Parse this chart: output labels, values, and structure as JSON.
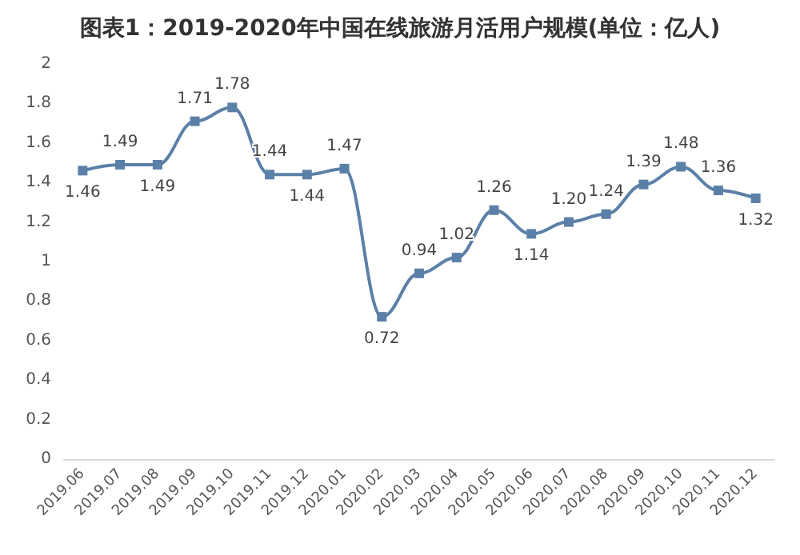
{
  "chart_data": {
    "type": "line",
    "title": "图表1：2019-2020年中国在线旅游月活用户规模(单位：亿人)",
    "categories": [
      "2019.06",
      "2019.07",
      "2019.08",
      "2019.09",
      "2019.10",
      "2019.11",
      "2019.12",
      "2020.01",
      "2020.02",
      "2020.03",
      "2020.04",
      "2020.05",
      "2020.06",
      "2020.07",
      "2020.08",
      "2020.09",
      "2020.10",
      "2020.11",
      "2020.12"
    ],
    "series": [
      {
        "color": "#5b80a8",
        "values": [
          1.46,
          1.49,
          1.49,
          1.71,
          1.78,
          1.44,
          1.44,
          1.47,
          0.72,
          0.94,
          1.02,
          1.26,
          1.14,
          1.2,
          1.24,
          1.39,
          1.48,
          1.36,
          1.32
        ],
        "value_labels": [
          "1.46",
          "1.49",
          "1.49",
          "1.71",
          "1.78",
          "1.44",
          "1.44",
          "1.47",
          "0.72",
          "0.94",
          "1.02",
          "1.26",
          "1.14",
          "1.20",
          "1.24",
          "1.39",
          "1.48",
          "1.36",
          "1.32"
        ]
      }
    ],
    "ylim": [
      0,
      2
    ],
    "yticks": [
      0,
      0.2,
      0.4,
      0.6,
      0.8,
      1,
      1.2,
      1.4,
      1.6,
      1.8,
      2
    ],
    "grid": false,
    "marker": "square",
    "line_style": "solid"
  }
}
